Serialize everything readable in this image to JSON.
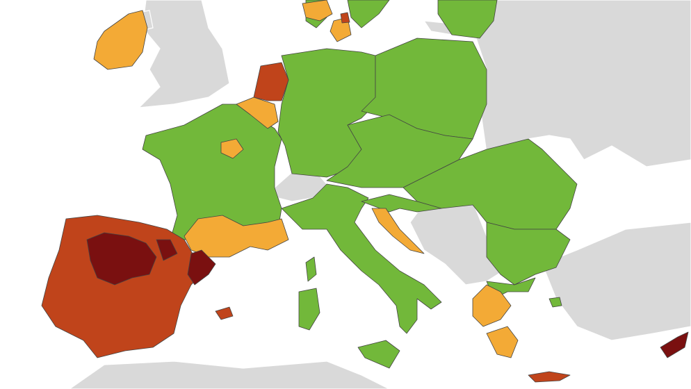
{
  "colors": {
    "sea": "#ffffff",
    "non_eu": "#d9d9d9",
    "green": "#72b83a",
    "orange": "#f3aa36",
    "red": "#c0441b",
    "dark_red": "#7a1010"
  }
}
